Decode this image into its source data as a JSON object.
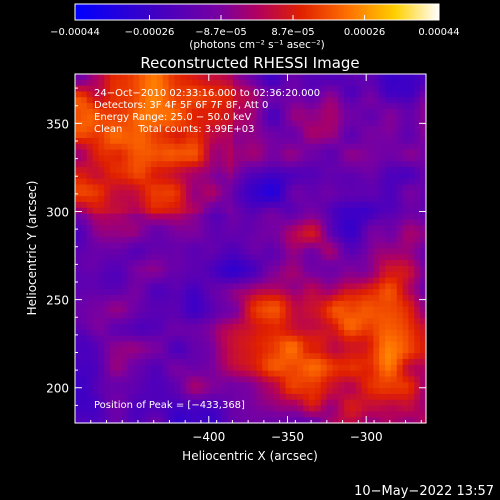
{
  "chart_data": {
    "type": "heatmap",
    "title": "Reconstructed RHESSI Image",
    "xlabel": "Heliocentric X (arcsec)",
    "ylabel": "Heliocentric Y (arcsec)",
    "xlim": [
      -485,
      -262
    ],
    "ylim": [
      180,
      378
    ],
    "xticks": [
      -400,
      -350,
      -300
    ],
    "yticks": [
      200,
      250,
      300,
      350
    ],
    "xtick_labels": [
      "−400",
      "−350",
      "−300"
    ],
    "ytick_labels": [
      "200",
      "250",
      "300",
      "350"
    ],
    "colorbar": {
      "range": [
        -0.00044,
        0.00044
      ],
      "tick_values": [
        -0.00044,
        -0.00026,
        -8.7e-05,
        8.7e-05,
        0.00026,
        0.00044
      ],
      "tick_labels": [
        "−0.00044",
        "−0.00026",
        "−8.7e−05",
        "8.7e−05",
        "0.00026",
        "0.00044"
      ],
      "unit_label": "(photons cm⁻² s⁻¹ asec⁻²)",
      "colors": [
        "#0000ff",
        "#3a00c8",
        "#7a00a0",
        "#b00060",
        "#e02000",
        "#ff7000",
        "#ffd000",
        "#ffffff"
      ]
    },
    "annotations": [
      "24−Oct−2010 02:33:16.000 to 02:36:20.000",
      "Detectors: 3F 4F 5F 6F 7F 8F, Att 0",
      "Energy Range: 25.0 − 50.0 keV",
      "Clean     Total counts: 3.99E+03"
    ],
    "peak_label": "Position of Peak = [−433,368]",
    "peak": [
      -433,
      368
    ],
    "grid": false
  },
  "footer": {
    "date": "10−May−2022 13:57"
  }
}
